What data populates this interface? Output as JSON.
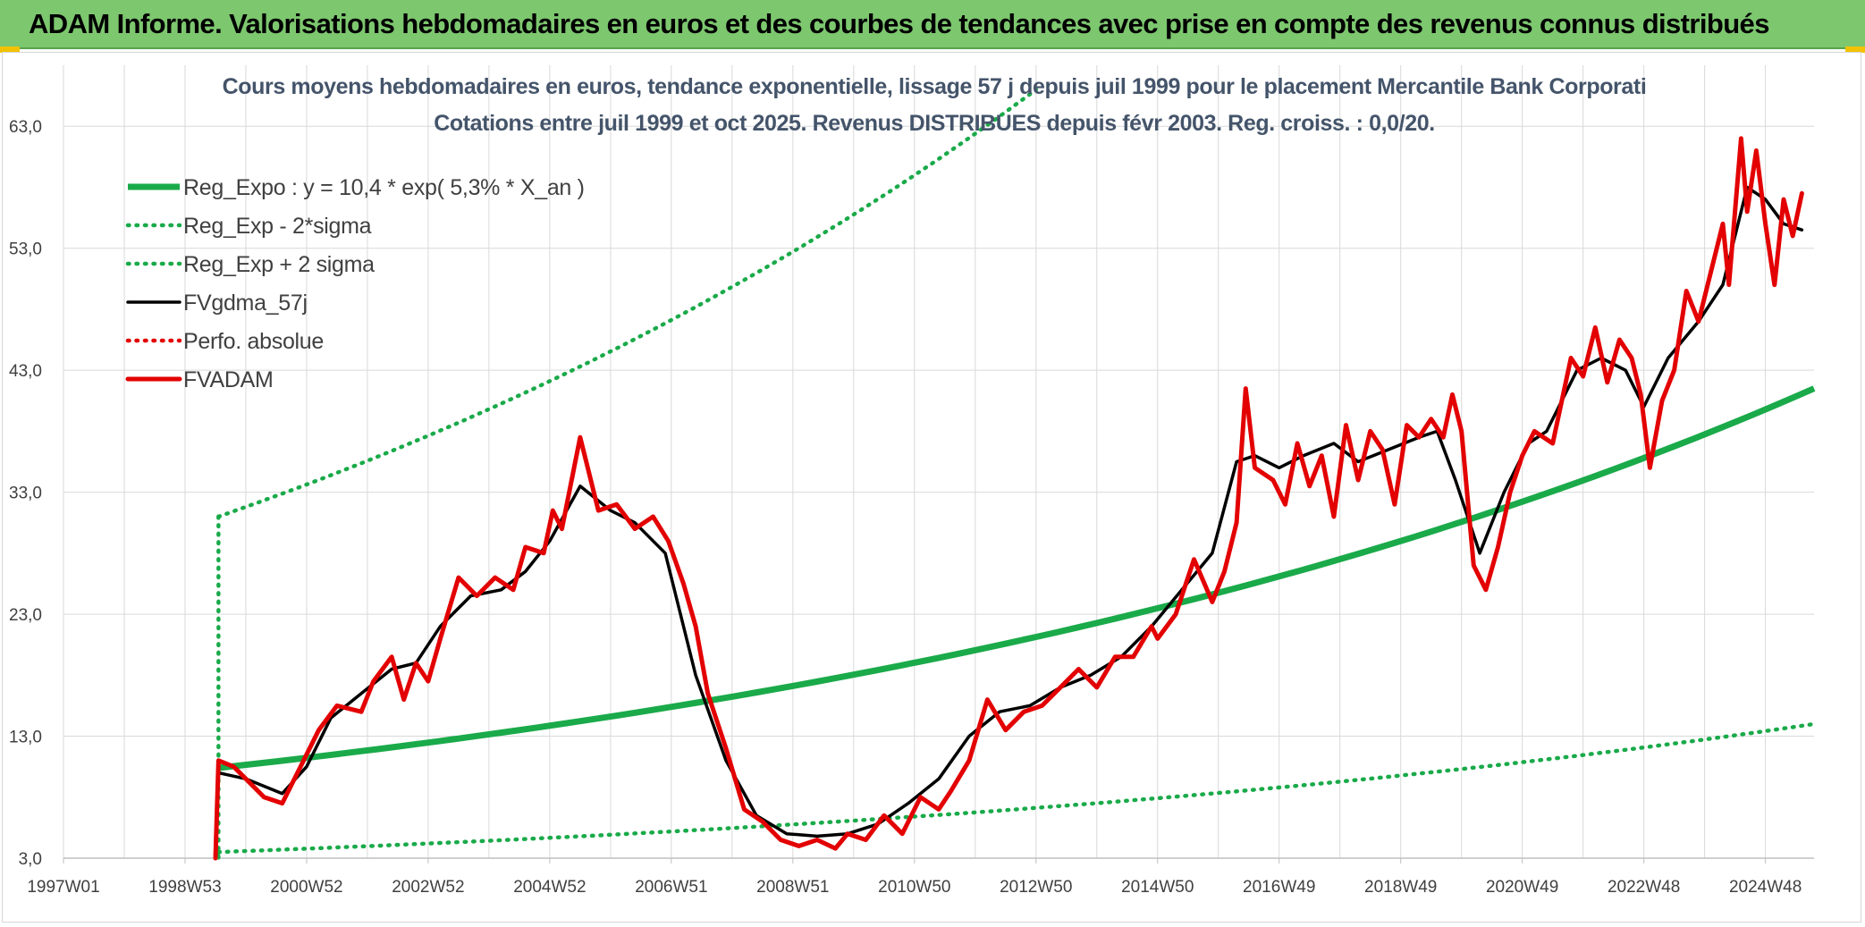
{
  "header": {
    "title": "ADAM Informe. Valorisations hebdomadaires en euros et des courbes de tendances avec prise en compte des revenus connus distribués"
  },
  "chart_data": {
    "type": "line",
    "title": "Cours moyens hebdomadaires en euros, tendance exponentielle, lissage 57 j depuis juil 1999 pour le placement Mercantile Bank Corporati",
    "subtitle": "Cotations entre juil 1999 et oct 2025. Revenus DISTRIBUES depuis févr 2003. Reg. croiss. : 0,0/20.",
    "xlabel": "",
    "ylabel": "",
    "x_range": [
      1997.0,
      2025.8
    ],
    "ylim": [
      3.0,
      68.0
    ],
    "y_ticks": [
      3.0,
      13.0,
      23.0,
      33.0,
      43.0,
      53.0,
      63.0
    ],
    "y_tick_labels": [
      "3,0",
      "13,0",
      "23,0",
      "33,0",
      "43,0",
      "53,0",
      "63,0"
    ],
    "x_ticks": [
      1997.0,
      1999.0,
      2001.0,
      2003.0,
      2005.0,
      2007.0,
      2009.0,
      2011.0,
      2013.0,
      2015.0,
      2017.0,
      2019.0,
      2021.0,
      2023.0,
      2025.0
    ],
    "x_tick_labels": [
      "1997W01",
      "1998W53",
      "2000W52",
      "2002W52",
      "2004W52",
      "2006W51",
      "2008W51",
      "2010W50",
      "2012W50",
      "2014W50",
      "2016W49",
      "2018W49",
      "2020W49",
      "2022W48",
      "2024W48"
    ],
    "grid": true,
    "legend_position": "top-left",
    "series": [
      {
        "name": "Reg_Expo : y = 10,4 * exp( 5,3% *  X_an )",
        "color": "#1aaa4a",
        "style": "solid",
        "x": [
          1999.55,
          2025.8
        ],
        "values": [
          10.4,
          41.5
        ]
      },
      {
        "name": "Reg_Exp - 2*sigma",
        "color": "#1aaa4a",
        "style": "dotted",
        "x": [
          1999.55,
          2025.8
        ],
        "values": [
          3.5,
          14.0
        ]
      },
      {
        "name": "Reg_Exp + 2 sigma",
        "color": "#1aaa4a",
        "style": "dotted",
        "x": [
          1999.55,
          2013.0
        ],
        "values": [
          31.0,
          66.0
        ]
      },
      {
        "name": "FVgdma_57j",
        "color": "#000000",
        "style": "solid",
        "x": [
          1999.55,
          2000.0,
          2000.6,
          2001.0,
          2001.4,
          2001.9,
          2002.4,
          2002.8,
          2003.2,
          2003.7,
          2004.2,
          2004.6,
          2005.0,
          2005.5,
          2006.0,
          2006.4,
          2006.9,
          2007.4,
          2007.9,
          2008.4,
          2008.9,
          2009.4,
          2009.9,
          2010.4,
          2010.9,
          2011.4,
          2011.9,
          2012.4,
          2012.9,
          2013.4,
          2013.9,
          2014.4,
          2014.9,
          2015.4,
          2015.9,
          2016.3,
          2016.6,
          2017.0,
          2017.4,
          2017.9,
          2018.3,
          2018.8,
          2019.3,
          2019.6,
          2019.9,
          2020.3,
          2020.7,
          2021.1,
          2021.4,
          2021.9,
          2022.3,
          2022.7,
          2023.0,
          2023.4,
          2023.9,
          2024.3,
          2024.7,
          2025.0,
          2025.3,
          2025.6
        ],
        "values": [
          10.0,
          9.5,
          8.3,
          10.5,
          14.5,
          16.5,
          18.5,
          19.0,
          22.0,
          24.5,
          25.0,
          26.5,
          29.0,
          33.5,
          31.5,
          30.5,
          28.0,
          18.0,
          11.0,
          6.5,
          5.0,
          4.8,
          5.0,
          5.8,
          7.5,
          9.5,
          13.0,
          15.0,
          15.5,
          17.0,
          18.0,
          19.5,
          22.0,
          25.0,
          28.0,
          35.5,
          36.0,
          35.0,
          36.0,
          37.0,
          35.5,
          36.5,
          37.5,
          38.0,
          34.0,
          28.0,
          33.0,
          37.0,
          38.0,
          43.0,
          44.0,
          43.0,
          40.0,
          44.0,
          47.0,
          50.0,
          58.0,
          57.0,
          55.0,
          54.5
        ]
      },
      {
        "name": "Perfo. absolue",
        "color": "#e30000",
        "style": "dotted",
        "x": [],
        "values": []
      },
      {
        "name": "FVADAM",
        "color": "#e30000",
        "style": "solid",
        "x": [
          1999.5,
          1999.55,
          1999.8,
          2000.0,
          2000.3,
          2000.6,
          2000.9,
          2001.2,
          2001.5,
          2001.9,
          2002.1,
          2002.4,
          2002.6,
          2002.8,
          2003.0,
          2003.2,
          2003.5,
          2003.8,
          2004.1,
          2004.4,
          2004.6,
          2004.9,
          2005.05,
          2005.2,
          2005.5,
          2005.8,
          2006.1,
          2006.4,
          2006.7,
          2006.95,
          2007.2,
          2007.4,
          2007.6,
          2007.9,
          2008.2,
          2008.5,
          2008.8,
          2009.1,
          2009.4,
          2009.7,
          2009.9,
          2010.2,
          2010.5,
          2010.8,
          2011.1,
          2011.4,
          2011.6,
          2011.9,
          2012.2,
          2012.5,
          2012.8,
          2013.1,
          2013.4,
          2013.7,
          2014.0,
          2014.3,
          2014.6,
          2014.9,
          2015.0,
          2015.3,
          2015.6,
          2015.9,
          2016.1,
          2016.3,
          2016.45,
          2016.6,
          2016.9,
          2017.1,
          2017.3,
          2017.5,
          2017.7,
          2017.9,
          2018.1,
          2018.3,
          2018.5,
          2018.7,
          2018.9,
          2019.1,
          2019.3,
          2019.5,
          2019.7,
          2019.85,
          2020.0,
          2020.2,
          2020.4,
          2020.6,
          2020.8,
          2021.0,
          2021.2,
          2021.5,
          2021.8,
          2022.0,
          2022.2,
          2022.4,
          2022.6,
          2022.8,
          2022.95,
          2023.1,
          2023.3,
          2023.5,
          2023.7,
          2023.9,
          2024.1,
          2024.3,
          2024.4,
          2024.6,
          2024.7,
          2024.85,
          2025.0,
          2025.15,
          2025.3,
          2025.45,
          2025.6
        ],
        "values": [
          3.0,
          11.0,
          10.5,
          9.5,
          8.0,
          7.5,
          10.5,
          13.5,
          15.5,
          15.0,
          17.5,
          19.5,
          16.0,
          19.0,
          17.5,
          21.0,
          26.0,
          24.5,
          26.0,
          25.0,
          28.5,
          28.0,
          31.5,
          30.0,
          37.5,
          31.5,
          32.0,
          30.0,
          31.0,
          29.0,
          25.5,
          22.0,
          16.5,
          12.0,
          7.0,
          6.0,
          4.5,
          4.0,
          4.5,
          3.8,
          5.0,
          4.5,
          6.5,
          5.0,
          8.0,
          7.0,
          8.5,
          11.0,
          16.0,
          13.5,
          15.0,
          15.5,
          17.0,
          18.5,
          17.0,
          19.5,
          19.5,
          22.0,
          21.0,
          23.0,
          27.5,
          24.0,
          26.5,
          30.5,
          41.5,
          35.0,
          34.0,
          32.0,
          37.0,
          33.5,
          36.0,
          31.0,
          38.5,
          34.0,
          38.0,
          36.5,
          32.0,
          38.5,
          37.5,
          39.0,
          37.5,
          41.0,
          38.0,
          27.0,
          25.0,
          28.5,
          33.0,
          36.0,
          38.0,
          37.0,
          44.0,
          42.5,
          46.5,
          42.0,
          45.5,
          44.0,
          41.0,
          35.0,
          40.5,
          43.0,
          49.5,
          47.0,
          51.0,
          55.0,
          50.0,
          62.0,
          56.0,
          61.0,
          55.0,
          50.0,
          57.0,
          54.0,
          57.5
        ]
      }
    ]
  }
}
